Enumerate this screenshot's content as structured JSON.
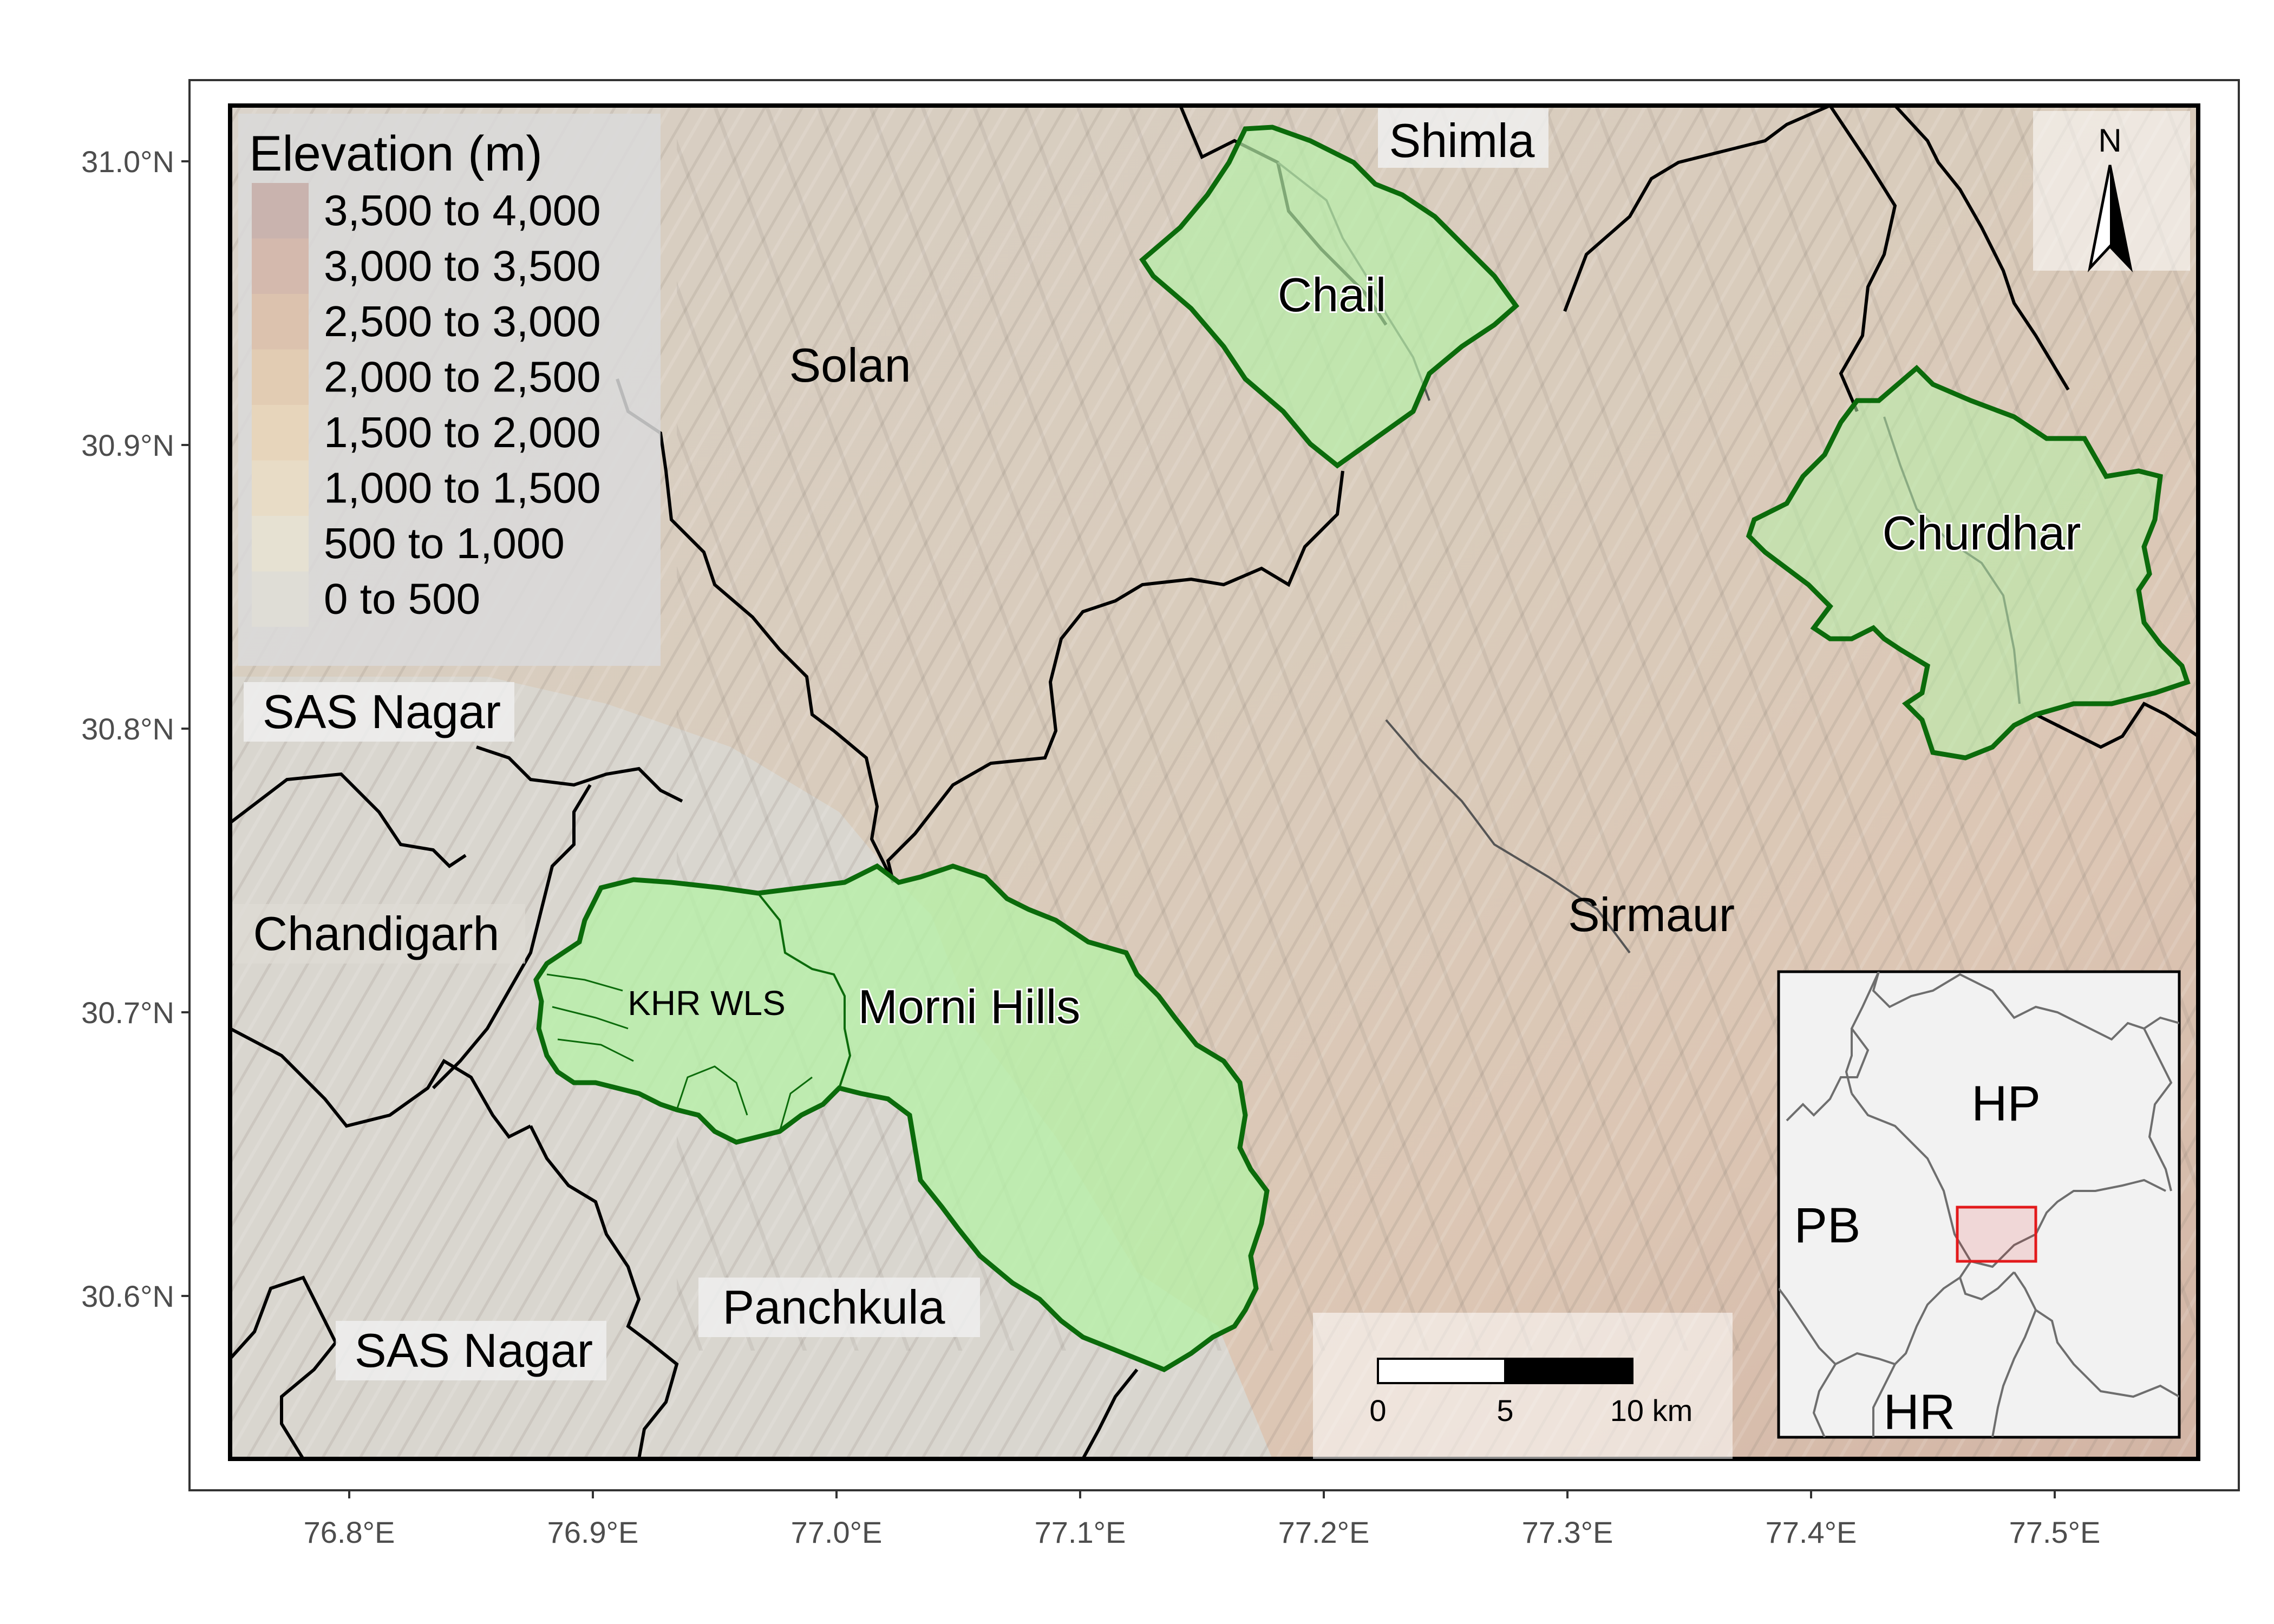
{
  "axes": {
    "x_ticks": [
      "76.8°E",
      "76.9°E",
      "77.0°E",
      "77.1°E",
      "77.2°E",
      "77.3°E",
      "77.4°E",
      "77.5°E"
    ],
    "y_ticks": [
      "31.0°N",
      "30.9°N",
      "30.8°N",
      "30.7°N",
      "30.6°N"
    ]
  },
  "legend": {
    "title": "Elevation (m)",
    "items": [
      {
        "label": "3,500 to 4,000",
        "color": "#c9b3ae"
      },
      {
        "label": "3,000 to 3,500",
        "color": "#d4b9ad"
      },
      {
        "label": "2,500 to 3,000",
        "color": "#dcc2ae"
      },
      {
        "label": "2,000 to 2,500",
        "color": "#e2ccb3"
      },
      {
        "label": "1,500 to 2,000",
        "color": "#e7d5bb"
      },
      {
        "label": "1,000 to 1,500",
        "color": "#e8dcc6"
      },
      {
        "label": "500 to 1,000",
        "color": "#e6e1d2"
      },
      {
        "label": "0 to 500",
        "color": "#dfddd6"
      }
    ]
  },
  "districts": {
    "shimla": "Shimla",
    "solan": "Solan",
    "sas_nagar_north": "SAS Nagar",
    "chandigarh": "Chandigarh",
    "sirmaur": "Sirmaur",
    "panchkula": "Panchkula",
    "sas_nagar_south": "SAS Nagar"
  },
  "protected_areas": {
    "chail": "Chail",
    "churdhar": "Churdhar",
    "morni_hills": "Morni Hills",
    "khr_wls": "KHR WLS"
  },
  "north_arrow": {
    "label": "N"
  },
  "scale_bar": {
    "ticks": [
      "0",
      "5",
      "10 km"
    ]
  },
  "inset": {
    "labels": {
      "hp": "HP",
      "pb": "PB",
      "hr": "HR"
    },
    "highlight_color": "#e31a1c"
  },
  "colors": {
    "protected_area_fill": "#b6f0a8",
    "protected_area_stroke": "#0b6b0b",
    "boundary": "#000000",
    "plains": "#d9d6cf"
  }
}
